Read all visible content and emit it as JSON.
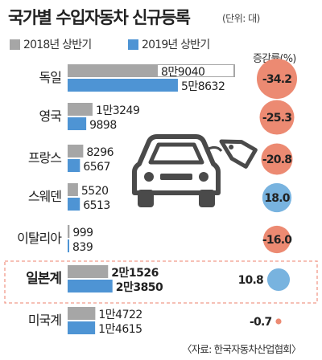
{
  "title": "국가별 수입자동차 신규등록",
  "unit": "(단위: 대)",
  "rate_label": "증감률(%)",
  "source": "〈자료: 한국자동차산업협회〉",
  "colors": {
    "series_2018": "#a6a6a6",
    "series_2019": "#4e94d4",
    "decrease": "#ec8a72",
    "increase": "#78b3df",
    "highlight_border": "#f09a8a",
    "icon": "#4a4a4a"
  },
  "icon": "car-with-price-tag-icon",
  "chart_data": {
    "type": "bar",
    "orientation": "horizontal",
    "categories": [
      "독일",
      "영국",
      "프랑스",
      "스웨덴",
      "이탈리아",
      "일본계",
      "미국계"
    ],
    "highlight": "일본계",
    "series": [
      {
        "name": "2018년 상반기",
        "values": [
          89040,
          13249,
          8296,
          5520,
          999,
          21526,
          14722
        ],
        "labels": [
          "8만9040",
          "1만3249",
          "8296",
          "5520",
          "999",
          "2만1526",
          "1만4722"
        ]
      },
      {
        "name": "2019년 상반기",
        "values": [
          58632,
          9898,
          6567,
          6513,
          839,
          23850,
          14615
        ],
        "labels": [
          "5만8632",
          "9898",
          "6567",
          "6513",
          "839",
          "2만3850",
          "1만4615"
        ]
      }
    ],
    "change_rates": [
      -34.2,
      -25.3,
      -20.8,
      18.0,
      -16.0,
      10.8,
      -0.7
    ],
    "change_labels": [
      "-34.2",
      "-25.3",
      "-20.8",
      "18.0",
      "-16.0",
      "10.8",
      "-0.7"
    ],
    "xlim": [
      0,
      89040
    ]
  }
}
